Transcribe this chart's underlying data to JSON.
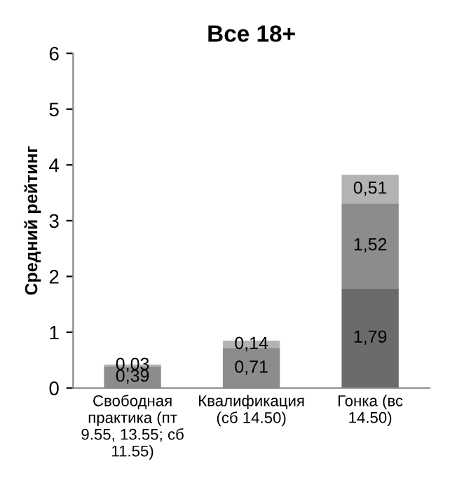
{
  "chart_data": {
    "type": "bar",
    "title": "Все 18+",
    "ylabel": "Средний рейтинг",
    "categories": [
      "Свободная\nпрактика (пт\n9.55, 13.55; сб\n11.55)",
      "Квалификация\n(сб 14.50)",
      "Гонка (вс\n14.50)"
    ],
    "stacked": true,
    "ylim": [
      0,
      6
    ],
    "yticks": [
      0,
      1,
      2,
      3,
      4,
      5,
      6
    ],
    "grid": false,
    "legend": false,
    "series": [
      {
        "color": "#6b6b6b",
        "values": [
          null,
          null,
          1.79
        ],
        "value_labels": [
          null,
          null,
          "1,79"
        ]
      },
      {
        "color": "#8c8c8c",
        "values": [
          0.39,
          0.71,
          1.52
        ],
        "value_labels": [
          "0,39",
          "0,71",
          "1,52"
        ]
      },
      {
        "color": "#b3b3b3",
        "values": [
          0.03,
          0.14,
          0.51
        ],
        "value_labels": [
          "0,03",
          "0,14",
          "0,51"
        ]
      }
    ]
  }
}
